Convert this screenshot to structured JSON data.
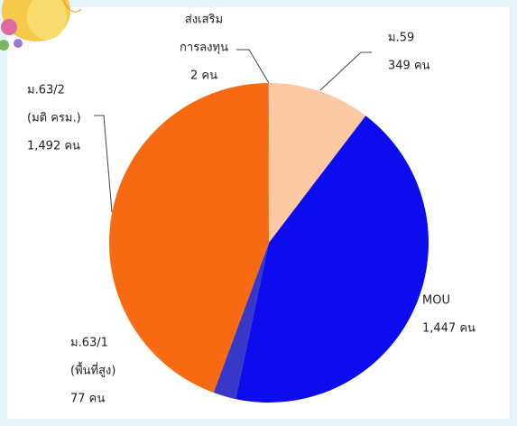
{
  "chart_data": {
    "type": "pie",
    "categories": [
      [
        "ม.59"
      ],
      [
        "MOU"
      ],
      [
        "ม.63/1",
        "(พื้นที่สูง)"
      ],
      [
        "ม.63/2",
        "(มติ ครม.)"
      ],
      [
        "ส่งเสริม",
        "การลงทุน"
      ]
    ],
    "values": [
      349,
      1447,
      77,
      1492,
      2
    ],
    "value_labels": [
      "349 คน",
      "1,447 คน",
      "77 คน",
      "1,492 คน",
      "2 คน"
    ],
    "colors": [
      "#fbc9a2",
      "#0c0cee",
      "#3838c8",
      "#f86a12",
      "#9a9a9a"
    ]
  }
}
